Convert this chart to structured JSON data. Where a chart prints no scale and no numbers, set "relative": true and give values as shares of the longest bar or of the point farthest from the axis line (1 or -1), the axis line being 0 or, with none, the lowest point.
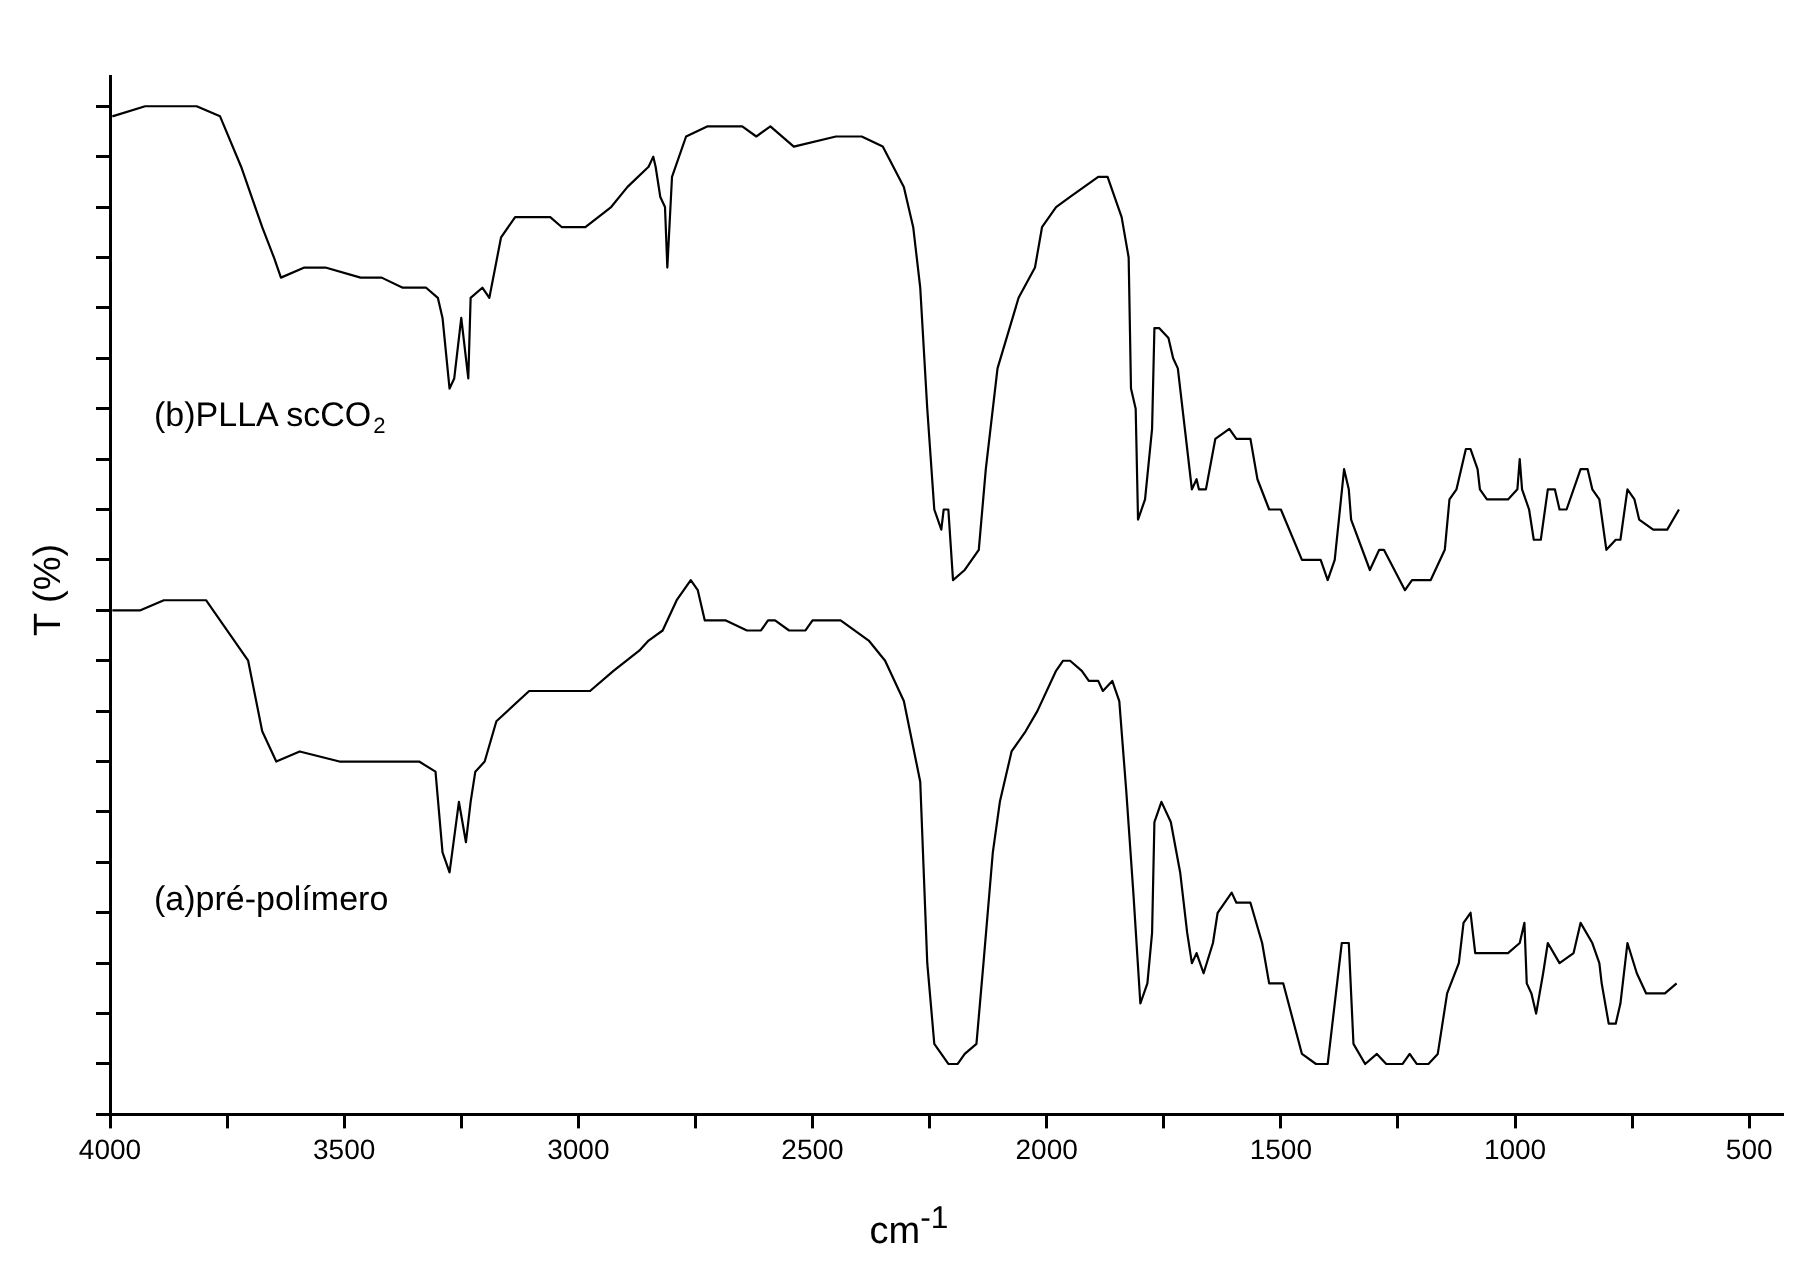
{
  "chart_data": {
    "type": "line",
    "xlabel": "cm$^{-1}$",
    "ylabel": "T (%)",
    "relative": true,
    "tick_labels": "x",
    "grid": false,
    "legend": false,
    "marker": "none",
    "line_style": "solid",
    "xlim": [
      4000,
      430
    ],
    "annotations": [
      "(b)PLLA scCO$_{2}$",
      "(a)pré-polímero"
    ],
    "xticks": [
      4000,
      {
        "value": 3750,
        "label": null
      },
      3500,
      {
        "value": 3250,
        "label": null
      },
      3000,
      {
        "value": 2750,
        "label": null
      },
      2500,
      {
        "value": 2250,
        "label": null
      },
      2000,
      {
        "value": 1750,
        "label": null
      },
      1500,
      {
        "value": 1250,
        "label": null
      },
      1000,
      {
        "value": 750,
        "label": null
      },
      500
    ],
    "series": [
      {
        "color": "#000000",
        "x": [
          3995,
          3925,
          3870,
          3815,
          3765,
          3720,
          3675,
          3650,
          3635,
          3585,
          3540,
          3465,
          3420,
          3375,
          3325,
          3300,
          3290,
          3275,
          3265,
          3250,
          3235,
          3230,
          3205,
          3190,
          3165,
          3135,
          3060,
          3035,
          2985,
          2930,
          2895,
          2850,
          2840,
          2835,
          2825,
          2815,
          2810,
          2800,
          2770,
          2725,
          2650,
          2620,
          2590,
          2540,
          2450,
          2395,
          2350,
          2305,
          2285,
          2270,
          2255,
          2240,
          2225,
          2220,
          2210,
          2200,
          2175,
          2145,
          2130,
          2105,
          2060,
          2025,
          2010,
          1980,
          1950,
          1920,
          1890,
          1870,
          1840,
          1825,
          1820,
          1810,
          1805,
          1790,
          1775,
          1770,
          1760,
          1740,
          1730,
          1720,
          1705,
          1690,
          1680,
          1675,
          1660,
          1640,
          1610,
          1595,
          1565,
          1550,
          1525,
          1500,
          1455,
          1415,
          1400,
          1385,
          1365,
          1355,
          1350,
          1310,
          1290,
          1280,
          1235,
          1220,
          1200,
          1195,
          1180,
          1150,
          1140,
          1125,
          1105,
          1095,
          1080,
          1075,
          1060,
          1015,
          995,
          990,
          985,
          970,
          960,
          945,
          930,
          915,
          905,
          890,
          860,
          845,
          835,
          820,
          805,
          785,
          775,
          760,
          745,
          735,
          705,
          675,
          650
        ],
        "values": [
          0.99,
          1.0,
          1.0,
          1.0,
          0.99,
          0.94,
          0.88,
          0.85,
          0.83,
          0.84,
          0.84,
          0.83,
          0.83,
          0.82,
          0.82,
          0.81,
          0.79,
          0.72,
          0.73,
          0.79,
          0.73,
          0.81,
          0.82,
          0.81,
          0.87,
          0.89,
          0.89,
          0.88,
          0.88,
          0.9,
          0.92,
          0.94,
          0.95,
          0.94,
          0.91,
          0.9,
          0.84,
          0.93,
          0.97,
          0.98,
          0.98,
          0.97,
          0.98,
          0.96,
          0.97,
          0.97,
          0.96,
          0.92,
          0.88,
          0.82,
          0.7,
          0.6,
          0.58,
          0.6,
          0.6,
          0.53,
          0.54,
          0.56,
          0.64,
          0.74,
          0.81,
          0.84,
          0.88,
          0.9,
          0.91,
          0.92,
          0.93,
          0.93,
          0.89,
          0.85,
          0.72,
          0.7,
          0.59,
          0.61,
          0.68,
          0.78,
          0.78,
          0.77,
          0.75,
          0.74,
          0.68,
          0.62,
          0.63,
          0.62,
          0.62,
          0.67,
          0.68,
          0.67,
          0.67,
          0.63,
          0.6,
          0.6,
          0.55,
          0.55,
          0.53,
          0.55,
          0.64,
          0.62,
          0.59,
          0.54,
          0.56,
          0.56,
          0.52,
          0.53,
          0.53,
          0.53,
          0.53,
          0.56,
          0.61,
          0.62,
          0.66,
          0.66,
          0.64,
          0.62,
          0.61,
          0.61,
          0.62,
          0.65,
          0.62,
          0.6,
          0.57,
          0.57,
          0.62,
          0.62,
          0.6,
          0.6,
          0.64,
          0.64,
          0.62,
          0.61,
          0.56,
          0.57,
          0.57,
          0.62,
          0.61,
          0.59,
          0.58,
          0.58,
          0.6
        ]
      },
      {
        "color": "#000000",
        "x": [
          3995,
          3935,
          3885,
          3795,
          3705,
          3675,
          3645,
          3595,
          3510,
          3450,
          3340,
          3305,
          3290,
          3275,
          3255,
          3240,
          3230,
          3220,
          3200,
          3175,
          3105,
          3035,
          2975,
          2925,
          2870,
          2850,
          2820,
          2790,
          2760,
          2745,
          2730,
          2685,
          2640,
          2610,
          2595,
          2580,
          2550,
          2515,
          2500,
          2440,
          2380,
          2345,
          2305,
          2270,
          2255,
          2240,
          2210,
          2190,
          2175,
          2150,
          2135,
          2115,
          2100,
          2075,
          2045,
          2020,
          1980,
          1965,
          1950,
          1925,
          1910,
          1890,
          1880,
          1860,
          1845,
          1830,
          1815,
          1800,
          1785,
          1775,
          1770,
          1755,
          1735,
          1715,
          1700,
          1690,
          1680,
          1665,
          1645,
          1635,
          1605,
          1595,
          1565,
          1540,
          1525,
          1495,
          1455,
          1425,
          1400,
          1385,
          1370,
          1355,
          1345,
          1320,
          1295,
          1275,
          1240,
          1225,
          1210,
          1185,
          1165,
          1145,
          1120,
          1110,
          1095,
          1085,
          1075,
          1015,
          990,
          980,
          975,
          965,
          955,
          940,
          930,
          905,
          875,
          860,
          835,
          820,
          815,
          800,
          785,
          775,
          760,
          740,
          720,
          680,
          655
        ],
        "values": [
          0.5,
          0.5,
          0.51,
          0.51,
          0.45,
          0.38,
          0.35,
          0.36,
          0.35,
          0.35,
          0.35,
          0.34,
          0.26,
          0.24,
          0.31,
          0.27,
          0.31,
          0.34,
          0.35,
          0.39,
          0.42,
          0.42,
          0.42,
          0.44,
          0.46,
          0.47,
          0.48,
          0.51,
          0.53,
          0.52,
          0.49,
          0.49,
          0.48,
          0.48,
          0.49,
          0.49,
          0.48,
          0.48,
          0.49,
          0.49,
          0.47,
          0.45,
          0.41,
          0.33,
          0.15,
          0.07,
          0.05,
          0.05,
          0.06,
          0.07,
          0.15,
          0.26,
          0.31,
          0.36,
          0.38,
          0.4,
          0.44,
          0.45,
          0.45,
          0.44,
          0.43,
          0.43,
          0.42,
          0.43,
          0.41,
          0.32,
          0.22,
          0.11,
          0.13,
          0.18,
          0.29,
          0.31,
          0.29,
          0.24,
          0.18,
          0.15,
          0.16,
          0.14,
          0.17,
          0.2,
          0.22,
          0.21,
          0.21,
          0.17,
          0.13,
          0.13,
          0.06,
          0.05,
          0.05,
          0.11,
          0.17,
          0.17,
          0.07,
          0.05,
          0.06,
          0.05,
          0.05,
          0.06,
          0.05,
          0.05,
          0.06,
          0.12,
          0.15,
          0.19,
          0.2,
          0.16,
          0.16,
          0.16,
          0.17,
          0.19,
          0.13,
          0.12,
          0.1,
          0.14,
          0.17,
          0.15,
          0.16,
          0.19,
          0.17,
          0.15,
          0.13,
          0.09,
          0.09,
          0.11,
          0.17,
          0.14,
          0.12,
          0.12,
          0.13
        ]
      }
    ]
  }
}
